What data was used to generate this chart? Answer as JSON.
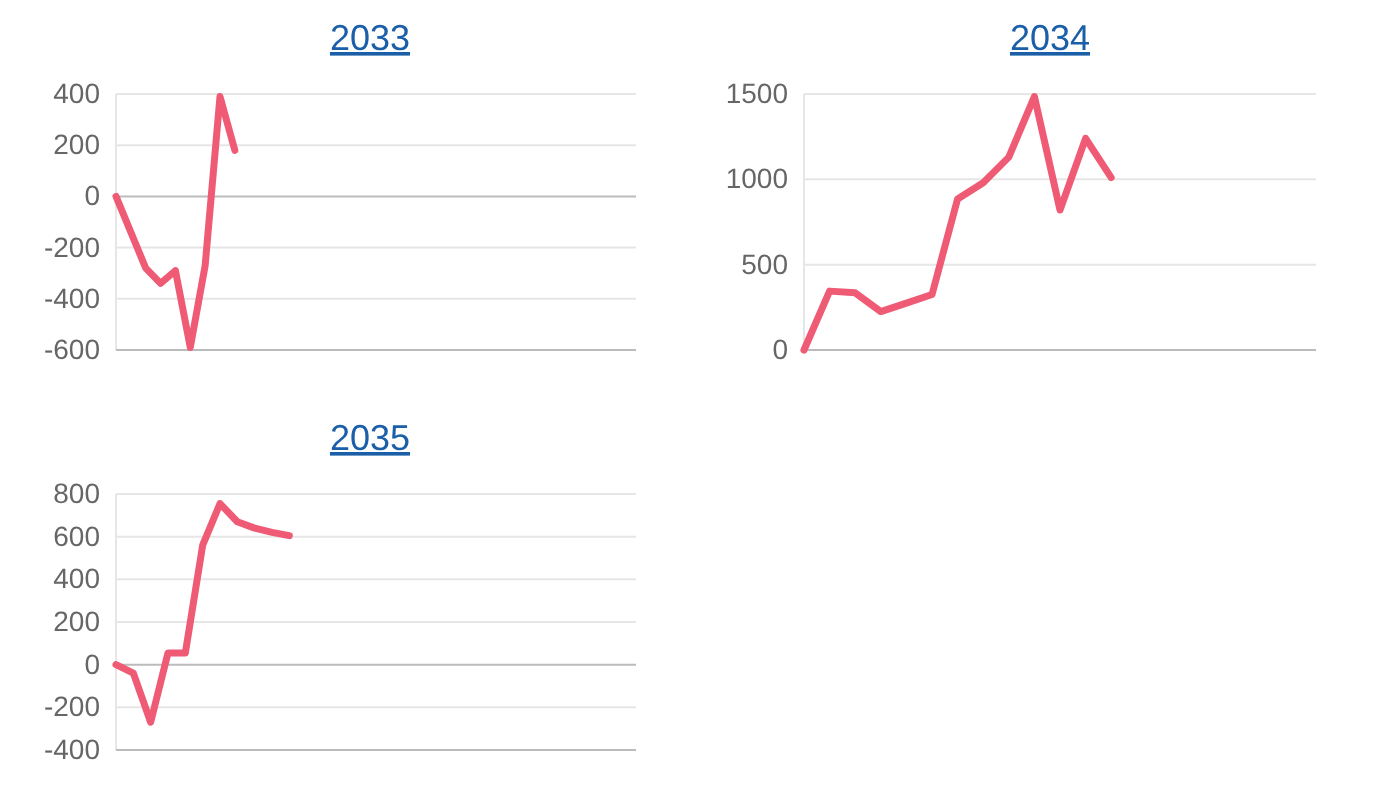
{
  "chart_data": [
    {
      "type": "line",
      "title": "2033",
      "categories": [
        null,
        null,
        null,
        null,
        null,
        null,
        null,
        null,
        null,
        null,
        null,
        null,
        null,
        null,
        null,
        null,
        null,
        null,
        null,
        null,
        null,
        null,
        null,
        null,
        null,
        null,
        null,
        null,
        null,
        null,
        null,
        null,
        null,
        null,
        null,
        null
      ],
      "series": [
        {
          "color": "#ef5a74",
          "values": [
            0,
            -140,
            -280,
            -340,
            -290,
            -590,
            -270,
            390,
            180,
            null,
            null,
            null,
            null,
            null,
            null,
            null,
            null,
            null,
            null,
            null,
            null,
            null,
            null,
            null,
            null,
            null,
            null,
            null,
            null,
            null,
            null,
            null,
            null,
            null,
            null,
            null
          ]
        }
      ],
      "ylim": [
        -600,
        400
      ],
      "yticks": [
        -600,
        -400,
        -200,
        0,
        200,
        400
      ],
      "grid": "y",
      "tick_labels": "y",
      "marker": "none"
    },
    {
      "type": "line",
      "title": "2034",
      "categories": [
        null,
        null,
        null,
        null,
        null,
        null,
        null,
        null,
        null,
        null,
        null,
        null,
        null,
        null,
        null,
        null,
        null,
        null,
        null,
        null,
        null
      ],
      "series": [
        {
          "color": "#ef5a74",
          "values": [
            0,
            345,
            335,
            225,
            275,
            325,
            885,
            980,
            1130,
            1485,
            820,
            1240,
            1010,
            null,
            null,
            null,
            null,
            null,
            null,
            null,
            null
          ]
        }
      ],
      "ylim": [
        0,
        1500
      ],
      "yticks": [
        0,
        500,
        1000,
        1500
      ],
      "grid": "y",
      "tick_labels": "y",
      "marker": "none"
    },
    {
      "type": "line",
      "title": "2035",
      "categories": [
        null,
        null,
        null,
        null,
        null,
        null,
        null,
        null,
        null,
        null,
        null,
        null,
        null,
        null,
        null,
        null,
        null,
        null,
        null,
        null,
        null,
        null,
        null,
        null,
        null,
        null,
        null,
        null,
        null,
        null,
        null
      ],
      "series": [
        {
          "color": "#ef5a74",
          "values": [
            0,
            -40,
            -270,
            55,
            55,
            560,
            755,
            670,
            640,
            620,
            605,
            null,
            null,
            null,
            null,
            null,
            null,
            null,
            null,
            null,
            null,
            null,
            null,
            null,
            null,
            null,
            null,
            null,
            null,
            null,
            null
          ]
        }
      ],
      "ylim": [
        -400,
        800
      ],
      "yticks": [
        -400,
        -200,
        0,
        200,
        400,
        600,
        800
      ],
      "grid": "y",
      "tick_labels": "y",
      "marker": "none"
    }
  ]
}
